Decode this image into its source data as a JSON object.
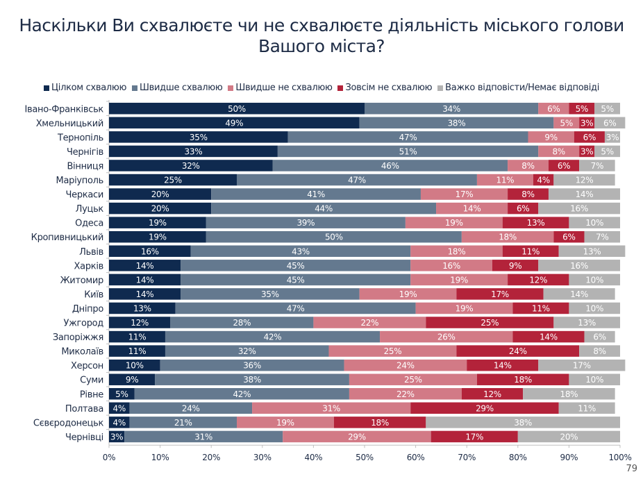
{
  "page_number": "79",
  "chart_data": {
    "type": "bar",
    "orientation": "horizontal",
    "stacked": true,
    "title_lines": [
      "Наскільки Ви схвалюєте чи не схвалюєте діяльність міського голови",
      "Вашого міста?"
    ],
    "title": "Наскільки Ви схвалюєте чи не схвалюєте діяльність міського голови Вашого міста?",
    "xlabel": "",
    "ylabel": "",
    "xlim": [
      0,
      100
    ],
    "x_ticks": [
      "0%",
      "10%",
      "20%",
      "30%",
      "40%",
      "50%",
      "60%",
      "70%",
      "80%",
      "90%",
      "100%"
    ],
    "grid": false,
    "legend_position": "top",
    "categories": [
      "Івано-Франківськ",
      "Хмельницький",
      "Тернопіль",
      "Чернігів",
      "Вінниця",
      "Маріуполь",
      "Черкаси",
      "Луцьк",
      "Одеса",
      "Кропивницький",
      "Львів",
      "Харків",
      "Житомир",
      "Київ",
      "Дніпро",
      "Ужгород",
      "Запоріжжя",
      "Миколаїв",
      "Херсон",
      "Суми",
      "Рівне",
      "Полтава",
      "Сєвєродонецьк",
      "Чернівці"
    ],
    "series": [
      {
        "name": "Цілком схвалюю",
        "color": "#0f2a4f",
        "values": [
          50,
          49,
          35,
          33,
          32,
          25,
          20,
          20,
          19,
          19,
          16,
          14,
          14,
          14,
          13,
          12,
          11,
          11,
          10,
          9,
          5,
          4,
          4,
          3
        ]
      },
      {
        "name": "Швидше схвалюю",
        "color": "#64798f",
        "values": [
          34,
          38,
          47,
          51,
          46,
          47,
          41,
          44,
          39,
          50,
          43,
          45,
          45,
          35,
          47,
          28,
          42,
          32,
          36,
          38,
          42,
          24,
          21,
          31
        ]
      },
      {
        "name": "Швидше не схвалюю",
        "color": "#d27a86",
        "values": [
          6,
          5,
          9,
          8,
          8,
          11,
          17,
          14,
          19,
          18,
          18,
          16,
          19,
          19,
          19,
          22,
          26,
          25,
          24,
          25,
          22,
          31,
          19,
          29
        ]
      },
      {
        "name": "Зовсім не схвалюю",
        "color": "#b3233a",
        "values": [
          5,
          3,
          6,
          3,
          6,
          4,
          8,
          6,
          13,
          6,
          11,
          9,
          12,
          17,
          11,
          25,
          14,
          24,
          14,
          18,
          12,
          29,
          18,
          17
        ]
      },
      {
        "name": "Важко відповісти/Немає відповіді",
        "color": "#b3b3b3",
        "values": [
          5,
          6,
          3,
          5,
          7,
          12,
          14,
          16,
          10,
          7,
          13,
          16,
          10,
          14,
          10,
          13,
          6,
          8,
          17,
          10,
          18,
          11,
          38,
          20
        ]
      }
    ]
  }
}
